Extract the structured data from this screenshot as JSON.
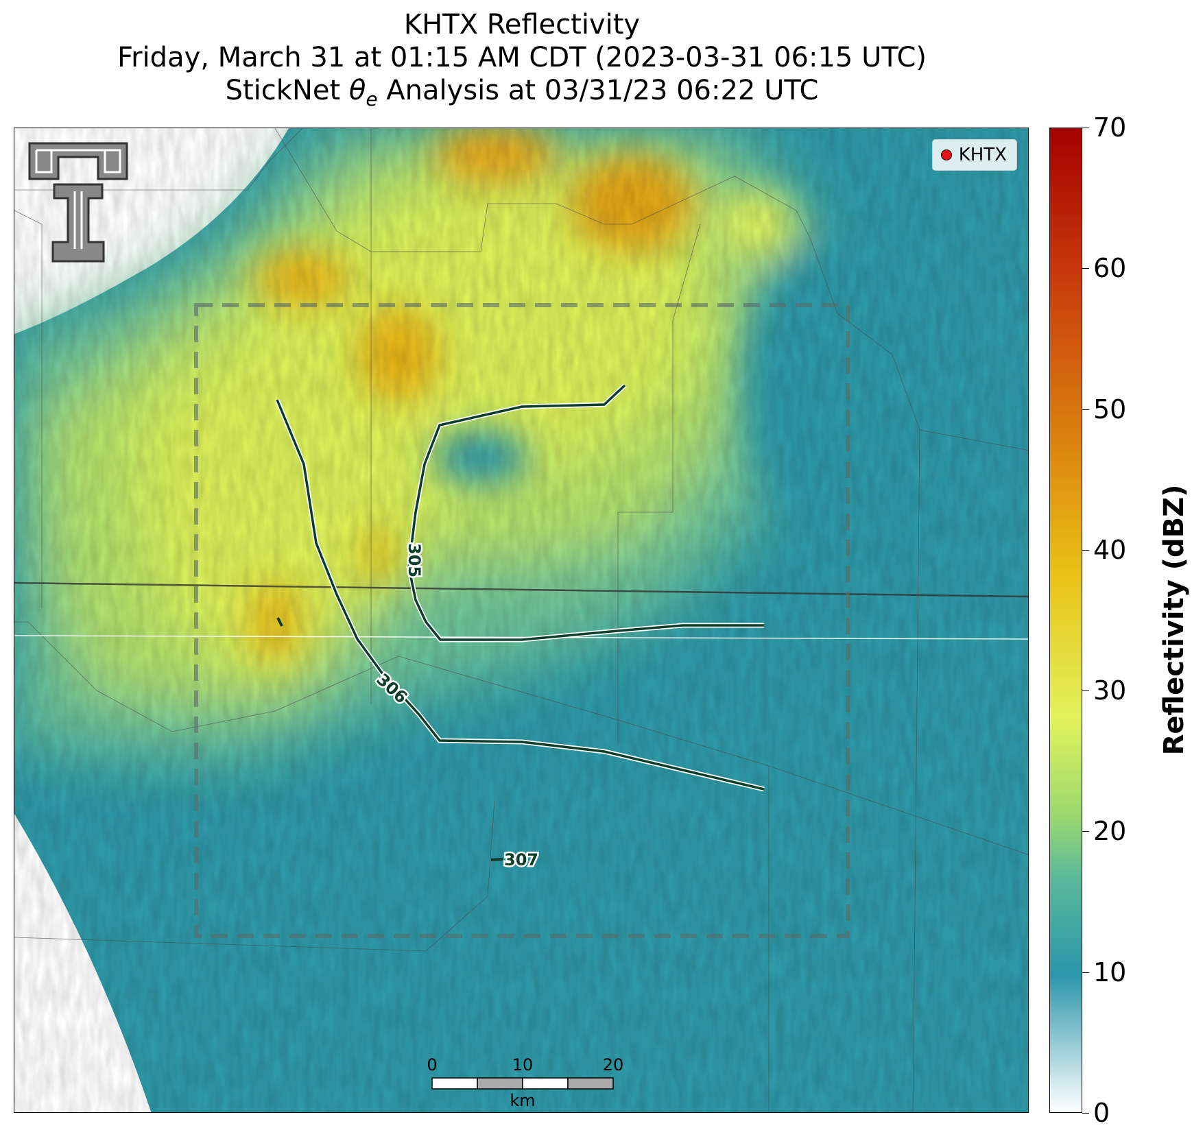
{
  "title": {
    "line1": "KHTX Reflectivity",
    "line2": "Friday, March 31 at 01:15 AM CDT (2023-03-31 06:15 UTC)",
    "line3_prefix": "StickNet ",
    "line3_symbol": "θ",
    "line3_subscript": "e",
    "line3_suffix": " Analysis at 03/31/23 06:22 UTC"
  },
  "legend": {
    "label": "KHTX",
    "marker_color": "#e8141c"
  },
  "colorbar": {
    "label": "Reflectivity (dBZ)",
    "min": 0,
    "max": 70,
    "ticks": [
      "0",
      "10",
      "20",
      "30",
      "40",
      "50",
      "60",
      "70"
    ]
  },
  "contours": [
    {
      "value": "305",
      "label": "305"
    },
    {
      "value": "306",
      "label": "306"
    },
    {
      "value": "307",
      "label": "307"
    }
  ],
  "scale_bar": {
    "unit": "km",
    "ticks": [
      "0",
      "10",
      "20"
    ]
  },
  "colors": {
    "contour": "#0b3d2a",
    "reflectivity_low": "#2b95aa",
    "reflectivity_mid": "#e2f35c",
    "reflectivity_high": "#e9a812"
  }
}
